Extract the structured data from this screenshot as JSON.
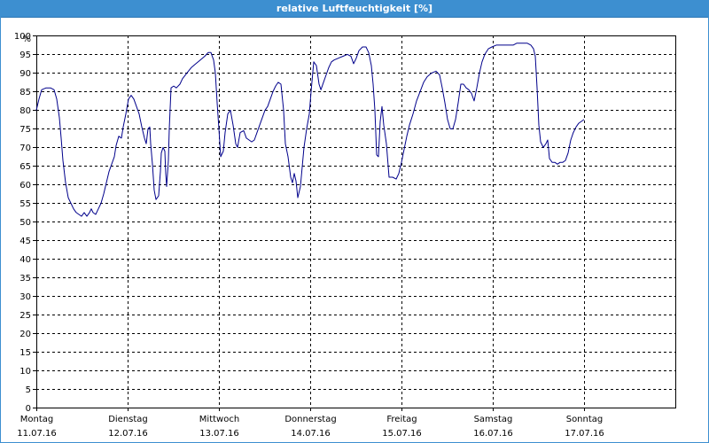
{
  "window": {
    "title": "relative Luftfeuchtigkeit [%]"
  },
  "colors": {
    "titlebar": "#3d8fd0",
    "line": "#00008b",
    "grid": "#000000"
  },
  "chart_data": {
    "type": "line",
    "title": "relative Luftfeuchtigkeit [%]",
    "ylabel": "%",
    "xlabel": "",
    "ylim": [
      0,
      100
    ],
    "yticks": [
      0,
      5,
      10,
      15,
      20,
      25,
      30,
      35,
      40,
      45,
      50,
      55,
      60,
      65,
      70,
      75,
      80,
      85,
      90,
      95,
      100
    ],
    "xlim": [
      0,
      7
    ],
    "grid": true,
    "x_ticks": [
      {
        "pos": 0,
        "day": "Montag",
        "date": "11.07.16"
      },
      {
        "pos": 1,
        "day": "Dienstag",
        "date": "12.07.16"
      },
      {
        "pos": 2,
        "day": "Mittwoch",
        "date": "13.07.16"
      },
      {
        "pos": 3,
        "day": "Donnerstag",
        "date": "14.07.16"
      },
      {
        "pos": 4,
        "day": "Freitag",
        "date": "15.07.16"
      },
      {
        "pos": 5,
        "day": "Samstag",
        "date": "16.07.16"
      },
      {
        "pos": 6,
        "day": "Sonntag",
        "date": "17.07.16"
      }
    ],
    "series": [
      {
        "points": [
          [
            0.0,
            79.9
          ],
          [
            0.029,
            82.9
          ],
          [
            0.058,
            85.4
          ],
          [
            0.107,
            85.9
          ],
          [
            0.155,
            85.9
          ],
          [
            0.194,
            85.4
          ],
          [
            0.223,
            82.9
          ],
          [
            0.252,
            77.9
          ],
          [
            0.272,
            72.4
          ],
          [
            0.291,
            66.4
          ],
          [
            0.32,
            60.4
          ],
          [
            0.35,
            56.4
          ],
          [
            0.379,
            54.9
          ],
          [
            0.408,
            53.4
          ],
          [
            0.437,
            52.4
          ],
          [
            0.466,
            51.9
          ],
          [
            0.495,
            51.4
          ],
          [
            0.524,
            52.4
          ],
          [
            0.553,
            51.4
          ],
          [
            0.583,
            52.4
          ],
          [
            0.602,
            53.4
          ],
          [
            0.621,
            52.4
          ],
          [
            0.65,
            51.9
          ],
          [
            0.68,
            53.4
          ],
          [
            0.709,
            54.9
          ],
          [
            0.738,
            57.4
          ],
          [
            0.767,
            60.4
          ],
          [
            0.796,
            63.4
          ],
          [
            0.825,
            65.4
          ],
          [
            0.854,
            67.4
          ],
          [
            0.874,
            70.4
          ],
          [
            0.903,
            72.9
          ],
          [
            0.932,
            72.4
          ],
          [
            0.951,
            75.4
          ],
          [
            0.981,
            78.9
          ],
          [
            1.01,
            82.9
          ],
          [
            1.039,
            83.9
          ],
          [
            1.068,
            82.9
          ],
          [
            1.097,
            80.9
          ],
          [
            1.126,
            78.9
          ],
          [
            1.155,
            75.4
          ],
          [
            1.184,
            72.4
          ],
          [
            1.204,
            70.9
          ],
          [
            1.223,
            74.9
          ],
          [
            1.243,
            75.4
          ],
          [
            1.252,
            70.9
          ],
          [
            1.272,
            65.4
          ],
          [
            1.291,
            58.4
          ],
          [
            1.311,
            55.9
          ],
          [
            1.34,
            56.9
          ],
          [
            1.359,
            63.4
          ],
          [
            1.369,
            68.4
          ],
          [
            1.388,
            69.9
          ],
          [
            1.408,
            68.9
          ],
          [
            1.417,
            62.9
          ],
          [
            1.427,
            59.4
          ],
          [
            1.447,
            66.4
          ],
          [
            1.456,
            74.9
          ],
          [
            1.476,
            85.9
          ],
          [
            1.505,
            86.4
          ],
          [
            1.534,
            85.9
          ],
          [
            1.573,
            86.9
          ],
          [
            1.602,
            88.4
          ],
          [
            1.65,
            89.9
          ],
          [
            1.699,
            91.4
          ],
          [
            1.748,
            92.4
          ],
          [
            1.796,
            93.4
          ],
          [
            1.845,
            94.4
          ],
          [
            1.883,
            95.4
          ],
          [
            1.913,
            95.4
          ],
          [
            1.942,
            93.4
          ],
          [
            1.961,
            89.9
          ],
          [
            1.981,
            81.9
          ],
          [
            2.0,
            74.9
          ],
          [
            2.019,
            67.4
          ],
          [
            2.049,
            68.9
          ],
          [
            2.068,
            73.9
          ],
          [
            2.097,
            78.9
          ],
          [
            2.126,
            79.9
          ],
          [
            2.155,
            75.9
          ],
          [
            2.184,
            70.9
          ],
          [
            2.204,
            69.9
          ],
          [
            2.233,
            73.9
          ],
          [
            2.272,
            74.4
          ],
          [
            2.301,
            72.4
          ],
          [
            2.33,
            71.9
          ],
          [
            2.359,
            71.4
          ],
          [
            2.388,
            71.9
          ],
          [
            2.417,
            73.9
          ],
          [
            2.447,
            75.9
          ],
          [
            2.476,
            77.9
          ],
          [
            2.505,
            79.9
          ],
          [
            2.534,
            80.9
          ],
          [
            2.563,
            82.9
          ],
          [
            2.592,
            84.9
          ],
          [
            2.621,
            86.4
          ],
          [
            2.65,
            87.4
          ],
          [
            2.68,
            86.9
          ],
          [
            2.709,
            79.9
          ],
          [
            2.728,
            70.9
          ],
          [
            2.757,
            67.4
          ],
          [
            2.786,
            61.9
          ],
          [
            2.806,
            60.4
          ],
          [
            2.825,
            62.9
          ],
          [
            2.845,
            60.9
          ],
          [
            2.864,
            56.4
          ],
          [
            2.893,
            59.4
          ],
          [
            2.912,
            64.4
          ],
          [
            2.932,
            69.9
          ],
          [
            2.961,
            74.9
          ],
          [
            2.99,
            78.9
          ],
          [
            3.01,
            84.9
          ],
          [
            3.039,
            92.9
          ],
          [
            3.068,
            91.9
          ],
          [
            3.097,
            86.9
          ],
          [
            3.117,
            85.4
          ],
          [
            3.146,
            87.4
          ],
          [
            3.175,
            89.4
          ],
          [
            3.204,
            91.4
          ],
          [
            3.233,
            92.9
          ],
          [
            3.262,
            93.4
          ],
          [
            3.311,
            93.9
          ],
          [
            3.359,
            94.4
          ],
          [
            3.408,
            94.9
          ],
          [
            3.447,
            94.4
          ],
          [
            3.476,
            92.4
          ],
          [
            3.505,
            93.9
          ],
          [
            3.534,
            95.9
          ],
          [
            3.573,
            96.9
          ],
          [
            3.612,
            96.9
          ],
          [
            3.641,
            95.4
          ],
          [
            3.67,
            91.9
          ],
          [
            3.689,
            86.9
          ],
          [
            3.709,
            79.9
          ],
          [
            3.728,
            67.9
          ],
          [
            3.748,
            67.4
          ],
          [
            3.767,
            76.9
          ],
          [
            3.786,
            80.9
          ],
          [
            3.806,
            75.9
          ],
          [
            3.835,
            70.9
          ],
          [
            3.864,
            61.9
          ],
          [
            3.903,
            61.9
          ],
          [
            3.942,
            61.4
          ],
          [
            3.971,
            62.9
          ],
          [
            4.0,
            65.9
          ],
          [
            4.029,
            69.4
          ],
          [
            4.058,
            72.9
          ],
          [
            4.087,
            75.9
          ],
          [
            4.126,
            78.9
          ],
          [
            4.165,
            82.4
          ],
          [
            4.204,
            84.9
          ],
          [
            4.243,
            87.4
          ],
          [
            4.282,
            88.9
          ],
          [
            4.33,
            89.9
          ],
          [
            4.379,
            90.4
          ],
          [
            4.417,
            89.4
          ],
          [
            4.447,
            85.9
          ],
          [
            4.476,
            81.9
          ],
          [
            4.505,
            77.4
          ],
          [
            4.534,
            74.9
          ],
          [
            4.563,
            74.9
          ],
          [
            4.592,
            77.4
          ],
          [
            4.621,
            81.9
          ],
          [
            4.65,
            86.9
          ],
          [
            4.68,
            86.9
          ],
          [
            4.709,
            85.9
          ],
          [
            4.738,
            85.4
          ],
          [
            4.767,
            84.4
          ],
          [
            4.796,
            82.4
          ],
          [
            4.825,
            85.9
          ],
          [
            4.854,
            89.9
          ],
          [
            4.883,
            92.9
          ],
          [
            4.913,
            94.9
          ],
          [
            4.951,
            96.4
          ],
          [
            4.99,
            96.9
          ],
          [
            5.039,
            97.4
          ],
          [
            5.087,
            97.4
          ],
          [
            5.136,
            97.4
          ],
          [
            5.184,
            97.4
          ],
          [
            5.223,
            97.4
          ],
          [
            5.262,
            97.9
          ],
          [
            5.301,
            97.9
          ],
          [
            5.34,
            97.9
          ],
          [
            5.379,
            97.9
          ],
          [
            5.417,
            97.4
          ],
          [
            5.447,
            96.4
          ],
          [
            5.466,
            94.4
          ],
          [
            5.485,
            85.9
          ],
          [
            5.505,
            75.9
          ],
          [
            5.524,
            71.4
          ],
          [
            5.553,
            69.9
          ],
          [
            5.583,
            70.9
          ],
          [
            5.602,
            71.9
          ],
          [
            5.621,
            66.9
          ],
          [
            5.65,
            65.9
          ],
          [
            5.68,
            65.9
          ],
          [
            5.709,
            65.4
          ],
          [
            5.738,
            65.9
          ],
          [
            5.767,
            65.9
          ],
          [
            5.796,
            66.4
          ],
          [
            5.825,
            68.4
          ],
          [
            5.854,
            71.9
          ],
          [
            5.883,
            73.9
          ],
          [
            5.913,
            75.4
          ],
          [
            5.942,
            76.4
          ],
          [
            5.971,
            76.9
          ],
          [
            6.0,
            77.4
          ]
        ]
      }
    ]
  }
}
